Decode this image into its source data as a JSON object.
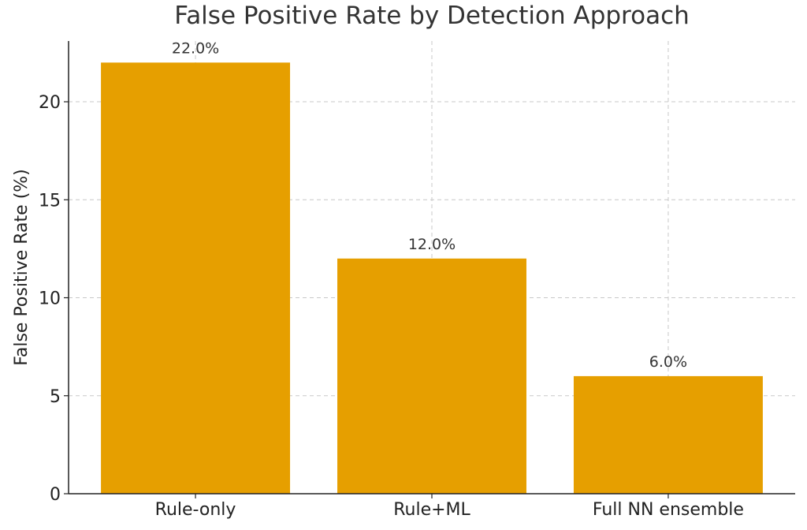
{
  "chart_data": {
    "type": "bar",
    "title": "False Positive Rate by Detection Approach",
    "xlabel": "",
    "ylabel": "False Positive Rate (%)",
    "categories": [
      "Rule-only",
      "Rule+ML",
      "Full NN ensemble"
    ],
    "values": [
      22.0,
      12.0,
      6.0
    ],
    "data_labels": [
      "22.0%",
      "12.0%",
      "6.0%"
    ],
    "ylim": [
      0,
      23.1
    ],
    "yticks": [
      0,
      5,
      10,
      15,
      20
    ],
    "grid": true,
    "bar_color": "#E69F00",
    "legend": null
  }
}
